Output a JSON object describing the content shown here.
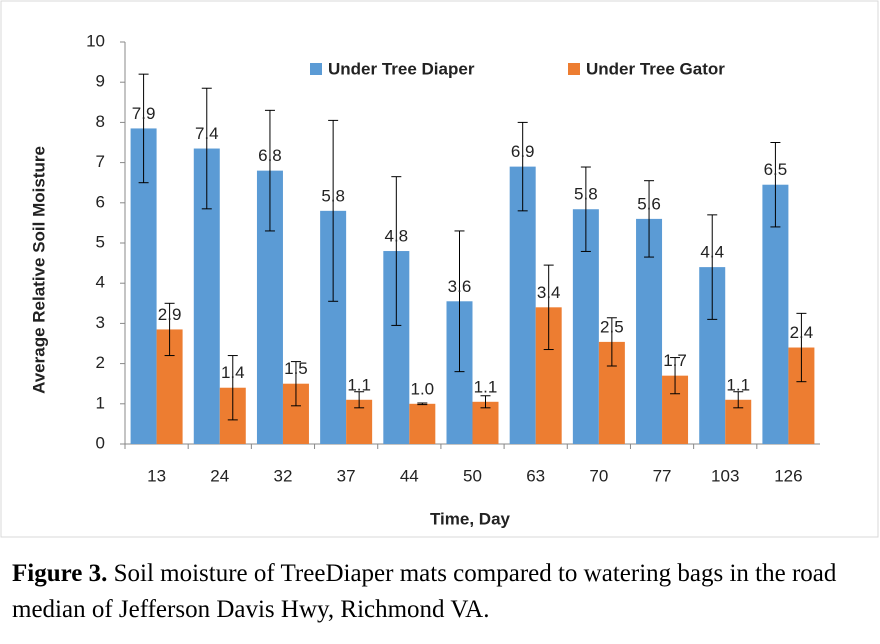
{
  "chart_data": {
    "type": "bar",
    "x_label": "Time, Day",
    "y_label": "Average Relative Soil Moisture",
    "categories": [
      "13",
      "24",
      "32",
      "37",
      "44",
      "50",
      "63",
      "70",
      "77",
      "103",
      "126"
    ],
    "series": [
      {
        "name": "Under Tree Diaper",
        "color": "#5b9bd5",
        "values": [
          7.85,
          7.35,
          6.8,
          5.8,
          4.8,
          3.55,
          6.9,
          5.84,
          5.6,
          4.4,
          6.45
        ],
        "value_labels": [
          "7.9",
          "7.4",
          "6.8",
          "5.8",
          "4.8",
          "3.6",
          "6.9",
          "5.8",
          "5.6",
          "4.4",
          "6.5"
        ],
        "errors": [
          1.35,
          1.5,
          1.5,
          2.25,
          1.85,
          1.75,
          1.1,
          1.05,
          0.95,
          1.3,
          1.05
        ]
      },
      {
        "name": "Under Tree Gator",
        "color": "#ed7d31",
        "values": [
          2.85,
          1.4,
          1.5,
          1.1,
          1.0,
          1.05,
          3.4,
          2.54,
          1.7,
          1.1,
          2.4
        ],
        "value_labels": [
          "2.9",
          "1.4",
          "1.5",
          "1.1",
          "1.0",
          "1.1",
          "3.4",
          "2.5",
          "1.7",
          "1.1",
          "2.4"
        ],
        "errors": [
          0.65,
          0.8,
          0.55,
          0.2,
          0.02,
          0.15,
          1.05,
          0.6,
          0.45,
          0.2,
          0.85
        ]
      }
    ],
    "ylim": [
      0,
      10
    ],
    "yticks": [
      0,
      1,
      2,
      3,
      4,
      5,
      6,
      7,
      8,
      9,
      10
    ],
    "grid": false,
    "legend": "top"
  },
  "caption": {
    "label": "Figure 3.",
    "text": " Soil moisture of TreeDiaper mats compared to watering bags in the road median of Jefferson Davis Hwy, Richmond VA."
  }
}
